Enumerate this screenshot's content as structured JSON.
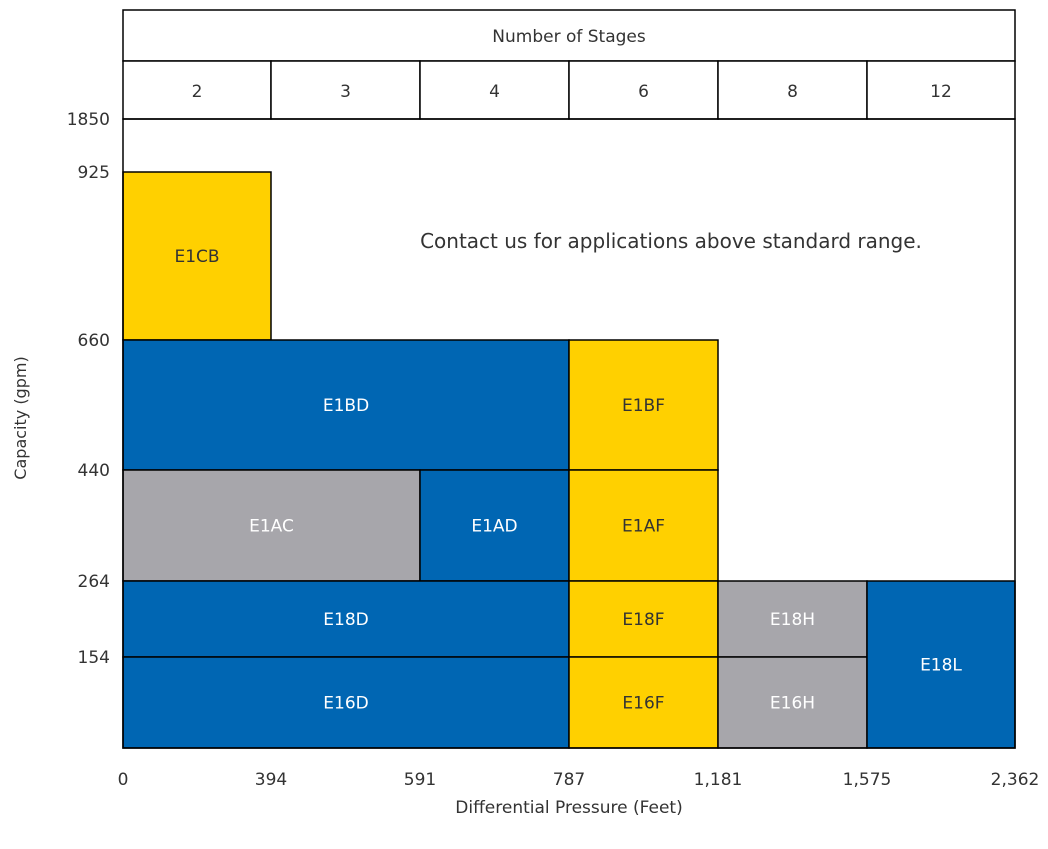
{
  "chart_data": {
    "type": "range-chart",
    "header_title": "Number of Stages",
    "stage_labels": [
      "2",
      "3",
      "4",
      "6",
      "8",
      "12"
    ],
    "x_ticks": [
      "0",
      "394",
      "591",
      "787",
      "1,181",
      "1,575",
      "2,362"
    ],
    "y_ticks": [
      "1850",
      "925",
      "660",
      "440",
      "264",
      "154"
    ],
    "xlabel": "Differential Pressure (Feet)",
    "ylabel": "Capacity (gpm)",
    "note": "Contact us for applications above standard range.",
    "x_units": [
      "0",
      "394",
      "591",
      "787",
      "1,181",
      "1,575",
      "2,362"
    ],
    "y_units": [
      "0",
      "154",
      "264",
      "440",
      "660",
      "925",
      "1850"
    ],
    "colors": {
      "blue": "#0066B3",
      "yellow": "#FFD000",
      "gray": "#A7A6AB",
      "border": "#000000",
      "text_light": "#ffffff",
      "text_dark": "#333333"
    },
    "regions": [
      {
        "label": "E1CB",
        "x_from": 0,
        "x_to": 394,
        "y_from": 660,
        "y_to": 925,
        "color": "yellow"
      },
      {
        "label": "E1BD",
        "x_from": 0,
        "x_to": 787,
        "y_from": 440,
        "y_to": 660,
        "color": "blue"
      },
      {
        "label": "E1BF",
        "x_from": 787,
        "x_to": 1181,
        "y_from": 440,
        "y_to": 660,
        "color": "yellow"
      },
      {
        "label": "E1AC",
        "x_from": 0,
        "x_to": 591,
        "y_from": 264,
        "y_to": 440,
        "color": "gray"
      },
      {
        "label": "E1AD",
        "x_from": 591,
        "x_to": 787,
        "y_from": 264,
        "y_to": 440,
        "color": "blue"
      },
      {
        "label": "E1AF",
        "x_from": 787,
        "x_to": 1181,
        "y_from": 264,
        "y_to": 440,
        "color": "yellow"
      },
      {
        "label": "E18D",
        "x_from": 0,
        "x_to": 787,
        "y_from": 154,
        "y_to": 264,
        "color": "blue"
      },
      {
        "label": "E18F",
        "x_from": 787,
        "x_to": 1181,
        "y_from": 154,
        "y_to": 264,
        "color": "yellow"
      },
      {
        "label": "E18H",
        "x_from": 1181,
        "x_to": 1575,
        "y_from": 154,
        "y_to": 264,
        "color": "gray"
      },
      {
        "label": "E16D",
        "x_from": 0,
        "x_to": 787,
        "y_from": 0,
        "y_to": 154,
        "color": "blue"
      },
      {
        "label": "E16F",
        "x_from": 787,
        "x_to": 1181,
        "y_from": 0,
        "y_to": 154,
        "color": "yellow"
      },
      {
        "label": "E16H",
        "x_from": 1181,
        "x_to": 1575,
        "y_from": 0,
        "y_to": 154,
        "color": "gray"
      },
      {
        "label": "E18L",
        "x_from": 1575,
        "x_to": 2362,
        "y_from": 0,
        "y_to": 264,
        "color": "blue"
      }
    ]
  }
}
